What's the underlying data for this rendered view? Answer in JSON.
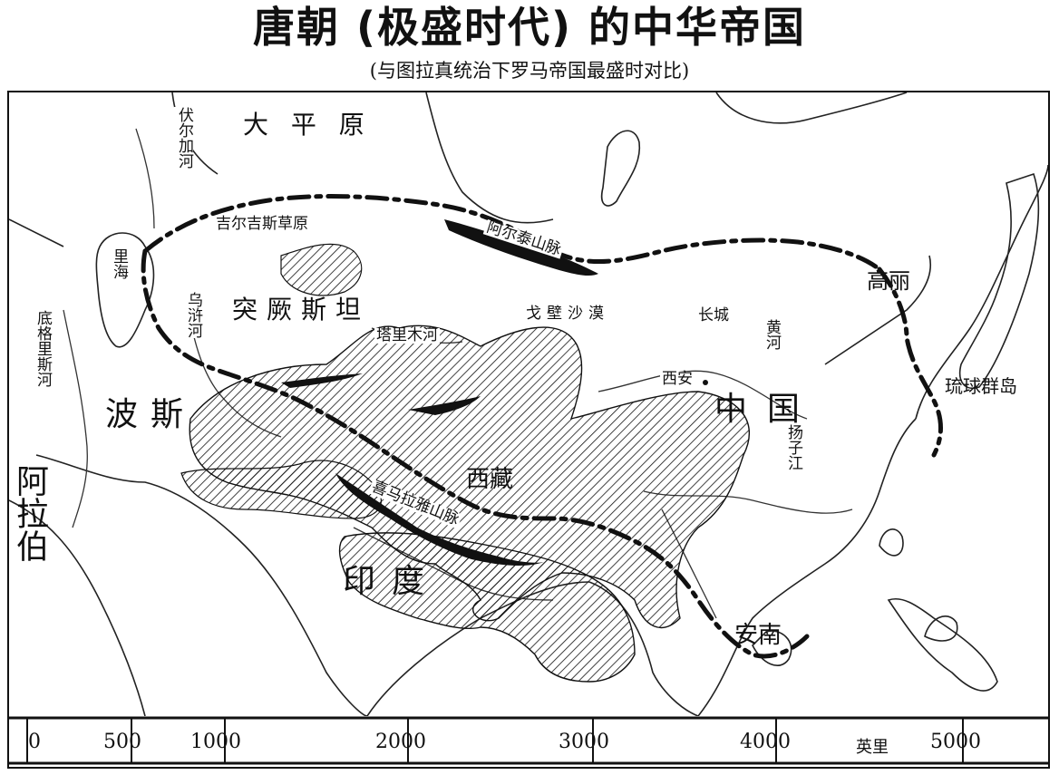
{
  "title": "唐朝 (极盛时代) 的中华帝国",
  "subtitle": "(与图拉真统治下罗马帝国最盛时对比)",
  "regions": {
    "taiping": "大 平 原",
    "tujuesitan": "突厥斯坦",
    "bosi": "波斯",
    "zhongguo": "中国",
    "xizang": "西藏",
    "yindu": "印度",
    "gaoli": "高丽",
    "annan": "安南",
    "alabo": "阿拉伯",
    "liuqiu": "琉球群岛"
  },
  "features": {
    "jierjisi": "吉尔吉斯草原",
    "aertai": "阿尔泰山脉",
    "gebi": "戈壁沙漠",
    "changcheng": "长城",
    "ximalaya": "喜马拉雅山脉",
    "talimu": "塔里木河",
    "lihai": "里海",
    "wuhu": "乌浒河",
    "fuerjia": "伏尔加河",
    "digeli": "底格里斯河",
    "huanghe": "黄河",
    "yangzi": "扬子江",
    "xian": "西安"
  },
  "scale": {
    "unit": "英里",
    "ticks": [
      "0",
      "500",
      "1000",
      "2000",
      "3000",
      "4000",
      "5000"
    ]
  }
}
